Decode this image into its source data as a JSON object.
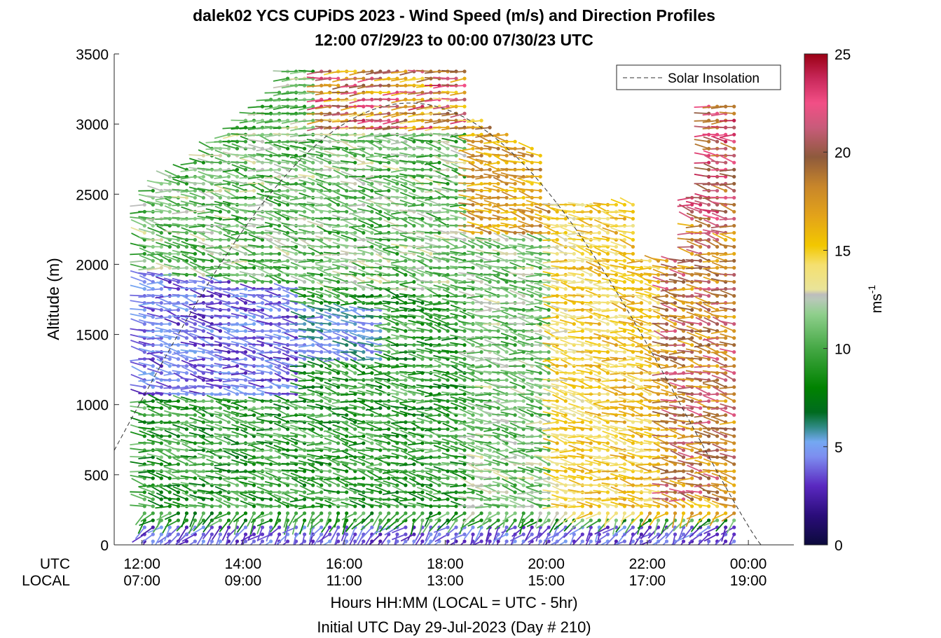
{
  "chart_data": {
    "type": "wind-barb-profile",
    "title_line1": "dalek02 YCS CUPiDS 2023 - Wind Speed (m/s) and Direction Profiles",
    "title_line2": "12:00 07/29/23 to 00:00 07/30/23  UTC",
    "ylabel": "Altitude (m)",
    "ylim": [
      0,
      3500
    ],
    "yticks": [
      0,
      500,
      1000,
      1500,
      2000,
      2500,
      3000,
      3500
    ],
    "xlim_hours": [
      11.45,
      24.9
    ],
    "xticks": [
      {
        "hour": 12,
        "utc": "12:00",
        "local": "07:00"
      },
      {
        "hour": 14,
        "utc": "14:00",
        "local": "09:00"
      },
      {
        "hour": 16,
        "utc": "16:00",
        "local": "11:00"
      },
      {
        "hour": 18,
        "utc": "18:00",
        "local": "13:00"
      },
      {
        "hour": 20,
        "utc": "20:00",
        "local": "15:00"
      },
      {
        "hour": 22,
        "utc": "22:00",
        "local": "17:00"
      },
      {
        "hour": 24,
        "utc": "00:00",
        "local": "19:00"
      }
    ],
    "row_label_utc": "UTC",
    "row_label_local": "LOCAL",
    "xlabel": "Hours HH:MM  (LOCAL = UTC - 5hr)",
    "xlabel2": "Initial UTC Day 29-Jul-2023 (Day # 210)",
    "legend": {
      "label": "Solar Insolation",
      "position": "top-right"
    },
    "colorbar": {
      "min": 0,
      "max": 25,
      "ticks": [
        0,
        5,
        10,
        15,
        20,
        25
      ],
      "label": "ms",
      "label_sup": "-1"
    },
    "solar_insolation": {
      "peak_hour": 17.3,
      "peak_altitude": 3150,
      "zero_hour_end": 24.25
    },
    "wind_profile_summary": {
      "profile_interval_minutes": 10,
      "first_profile_hour": 12.05,
      "last_profile_hour": 23.75,
      "speed_regimes": [
        {
          "hours": "12:00-15:00",
          "altitude_m": "1100-1900",
          "speed_ms": "2-5"
        },
        {
          "hours": "12:00-24:00",
          "altitude_m": "0-150",
          "speed_ms": "2-5"
        },
        {
          "hours": "13:00-20:00",
          "altitude_m": "200-2700",
          "speed_ms": "7-12"
        },
        {
          "hours": "20:00-23:00",
          "altitude_m": "200-2000",
          "speed_ms": "12-15"
        },
        {
          "hours": "21:30-24:00",
          "altitude_m": "300-3200",
          "speed_ms": "16-21"
        },
        {
          "hours": "16:00-19:00",
          "altitude_m": "3000-3500",
          "speed_ms": "14-25"
        }
      ]
    }
  }
}
